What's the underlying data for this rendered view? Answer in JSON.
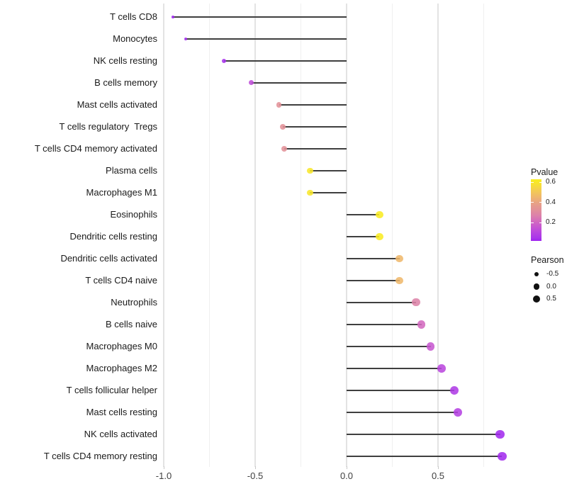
{
  "chart_data": {
    "type": "scatter",
    "variant": "lollipop",
    "orientation": "horizontal",
    "title": "",
    "xlabel": "",
    "ylabel": "",
    "x_tick_labels": [
      "-1.0",
      "-0.5",
      "0.0",
      "0.5"
    ],
    "x_ticks": [
      -1.0,
      -0.5,
      0.0,
      0.5
    ],
    "x_minor_gridlines": [
      -0.75,
      -0.25,
      0.25,
      0.75
    ],
    "xlim": [
      -1.04,
      0.88
    ],
    "baseline": 0.0,
    "grid": true,
    "legend_position": "right",
    "rows": [
      {
        "label": "T cells CD8",
        "pearson": -0.95,
        "pvalue": 0.01
      },
      {
        "label": "Monocytes",
        "pearson": -0.88,
        "pvalue": 0.02
      },
      {
        "label": "NK cells resting",
        "pearson": -0.67,
        "pvalue": 0.04
      },
      {
        "label": "B cells memory",
        "pearson": -0.52,
        "pvalue": 0.13
      },
      {
        "label": "Mast cells activated",
        "pearson": -0.37,
        "pvalue": 0.33
      },
      {
        "label": "T cells regulatory  Tregs",
        "pearson": -0.35,
        "pvalue": 0.33
      },
      {
        "label": "T cells CD4 memory activated",
        "pearson": -0.34,
        "pvalue": 0.33
      },
      {
        "label": "Plasma cells",
        "pearson": -0.2,
        "pvalue": 0.6
      },
      {
        "label": "Macrophages M1",
        "pearson": -0.2,
        "pvalue": 0.6
      },
      {
        "label": "Eosinophils",
        "pearson": 0.18,
        "pvalue": 0.62
      },
      {
        "label": "Dendritic cells resting",
        "pearson": 0.18,
        "pvalue": 0.62
      },
      {
        "label": "Dendritic cells activated",
        "pearson": 0.29,
        "pvalue": 0.46
      },
      {
        "label": "T cells CD4 naive",
        "pearson": 0.29,
        "pvalue": 0.46
      },
      {
        "label": "Neutrophils",
        "pearson": 0.38,
        "pvalue": 0.28
      },
      {
        "label": "B cells naive",
        "pearson": 0.41,
        "pvalue": 0.21
      },
      {
        "label": "Macrophages M0",
        "pearson": 0.46,
        "pvalue": 0.16
      },
      {
        "label": "Macrophages M2",
        "pearson": 0.52,
        "pvalue": 0.11
      },
      {
        "label": "T cells follicular helper",
        "pearson": 0.59,
        "pvalue": 0.07
      },
      {
        "label": "Mast cells resting",
        "pearson": 0.61,
        "pvalue": 0.09
      },
      {
        "label": "NK cells activated",
        "pearson": 0.84,
        "pvalue": 0.02
      },
      {
        "label": "T cells CD4 memory resting",
        "pearson": 0.85,
        "pvalue": 0.02
      }
    ]
  },
  "legend": {
    "pvalue": {
      "title": "Pvalue",
      "range": [
        0.02,
        0.63
      ],
      "ticks": [
        {
          "value": 0.6,
          "label": "0.6"
        },
        {
          "value": 0.4,
          "label": "0.4"
        },
        {
          "value": 0.2,
          "label": "0.2"
        }
      ]
    },
    "pearson": {
      "title": "Pearson",
      "items": [
        {
          "value": -0.5,
          "label": "-0.5"
        },
        {
          "value": 0.0,
          "label": "0.0"
        },
        {
          "value": 0.5,
          "label": "0.5"
        }
      ]
    }
  },
  "colors": {
    "background": "#ffffff",
    "stem": "#3f3f3f",
    "grid_major": "#e3e3e3",
    "grid_minor": "#f0f0f0",
    "label_text": "#1a1a1a",
    "axis_text": "#404040",
    "legend_dot": "#111111",
    "gradient_stops": [
      {
        "p": 0.0,
        "color": "#9E22F0"
      },
      {
        "p": 0.05,
        "color": "#A935EA"
      },
      {
        "p": 0.11,
        "color": "#BA46DE"
      },
      {
        "p": 0.17,
        "color": "#C95ACD"
      },
      {
        "p": 0.22,
        "color": "#D46DBC"
      },
      {
        "p": 0.27,
        "color": "#DC80AB"
      },
      {
        "p": 0.32,
        "color": "#E18F9B"
      },
      {
        "p": 0.38,
        "color": "#E69D8B"
      },
      {
        "p": 0.46,
        "color": "#EFB86B"
      },
      {
        "p": 0.52,
        "color": "#F3CC52"
      },
      {
        "p": 0.58,
        "color": "#F7E132"
      },
      {
        "p": 0.63,
        "color": "#F9EF1D"
      }
    ]
  }
}
